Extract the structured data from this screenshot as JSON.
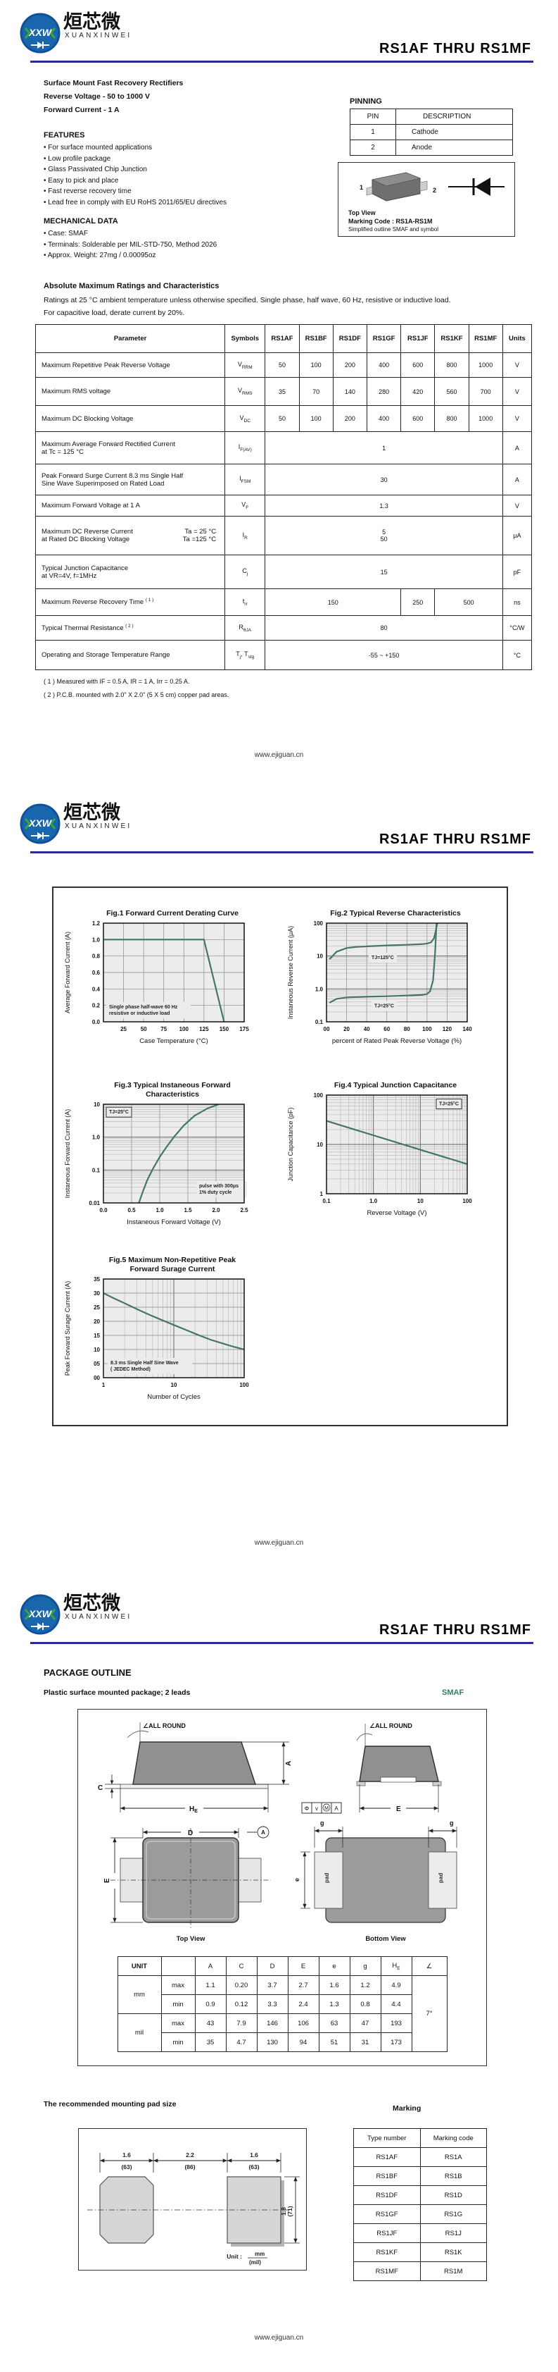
{
  "header": {
    "logo_xxw": "XXW",
    "logo_cn": "烜芯微",
    "logo_sub": "XUANXINWEI",
    "title": "RS1AF  THRU  RS1MF"
  },
  "footer": {
    "url": "www.ejiguan.cn"
  },
  "page1": {
    "intro": [
      "Surface Mount Fast Recovery Rectifiers",
      "Reverse Voltage - 50 to 1000 V",
      "Forward Current - 1 A"
    ],
    "features_title": "FEATURES",
    "features": [
      "• For surface mounted applications",
      "• Low profile package",
      "• Glass Passivated Chip Junction",
      "• Easy to pick and place",
      "• Fast reverse recovery time",
      "• Lead free in comply with EU RoHS 2011/65/EU directives"
    ],
    "mech_title": "MECHANICAL DATA",
    "mech": [
      "• Case: SMAF",
      "• Terminals: Solderable per MIL-STD-750, Method 2026",
      "• Approx. Weight:  27mg / 0.00095oz"
    ],
    "pinning": {
      "title": "PINNING",
      "h1": "PIN",
      "h2": "DESCRIPTION",
      "rows": [
        [
          "1",
          "Cathode"
        ],
        [
          "2",
          "Anode"
        ]
      ]
    },
    "outline_box": {
      "pin1": "1",
      "pin2": "2",
      "top_view": "Top View",
      "marking_code": "Marking Code :  RS1A-RS1M",
      "caption": "Simplified outline SMAF and symbol"
    },
    "ratings": {
      "title": "Absolute Maximum Ratings and Characteristics",
      "desc1": "Ratings at 25 °C ambient temperature unless otherwise specified. Single phase, half wave, 60 Hz, resistive or inductive load.",
      "desc2": "For capacitive load, derate current by 20%.",
      "col_headers": [
        "Parameter",
        "Symbols",
        "RS1AF",
        "RS1BF",
        "RS1DF",
        "RS1GF",
        "RS1JF",
        "RS1KF",
        "RS1MF",
        "Units"
      ],
      "rows": [
        {
          "param": "Maximum Repetitive Peak Reverse Voltage",
          "sym": "V",
          "sub": "RRM",
          "values": [
            "50",
            "100",
            "200",
            "400",
            "600",
            "800",
            "1000"
          ],
          "unit": "V"
        },
        {
          "param": "Maximum RMS voltage",
          "sym": "V",
          "sub": "RMS",
          "values": [
            "35",
            "70",
            "140",
            "280",
            "420",
            "560",
            "700"
          ],
          "unit": "V"
        },
        {
          "param": "Maximum DC Blocking Voltage",
          "sym": "V",
          "sub": "DC",
          "values": [
            "50",
            "100",
            "200",
            "400",
            "600",
            "800",
            "1000"
          ],
          "unit": "V"
        },
        {
          "param": "Maximum Average Forward Rectified Current",
          "param2": "at Tc = 125 °C",
          "sym": "I",
          "sub": "F(AV)",
          "value": "1",
          "unit": "A"
        },
        {
          "param": "Peak Forward Surge Current 8.3 ms Single Half",
          "param2": "Sine Wave Superimposed on Rated Load",
          "sym": "I",
          "sub": "FSM",
          "value": "30",
          "unit": "A"
        },
        {
          "param": "Maximum  Forward Voltage at 1 A",
          "sym": "V",
          "sub": "F",
          "value": "1.3",
          "unit": "V"
        },
        {
          "param": "Maximum DC Reverse Current",
          "param_r": "Ta = 25 °C",
          "param2": "at Rated DC Blocking Voltage",
          "param2_r": "Ta =125 °C",
          "sym": "I",
          "sub": "R",
          "value": "5",
          "value2": "50",
          "unit": "μA"
        },
        {
          "param": "Typical Junction Capacitance",
          "param2": "at VR=4V, f=1MHz",
          "sym": "C",
          "sub": "j",
          "value": "15",
          "unit": "pF"
        },
        {
          "param": "Maximum Reverse Recovery Time",
          "note_ref": "( 1 )",
          "sym": "t",
          "sub": "rr",
          "v150": "150",
          "v250": "250",
          "v500": "500",
          "unit": "ns"
        },
        {
          "param": "Typical Thermal Resistance",
          "note_ref": "( 2 )",
          "sym": "R",
          "sub": "θJA",
          "value": "80",
          "unit": "°C/W"
        },
        {
          "param": "Operating and Storage Temperature Range",
          "sym": "T",
          "sub": "j",
          "sym2": "T",
          "sub2": "stg",
          "value": "-55 ~ +150",
          "unit": "°C"
        }
      ]
    },
    "notes": [
      "( 1 ) Measured with IF = 0.5 A, IR = 1 A, Irr = 0.25 A.",
      "( 2 ) P.C.B. mounted with 2.0\" X 2.0\" (5 X 5 cm) copper pad areas."
    ]
  },
  "chart_data": [
    {
      "id": "fig1",
      "type": "line",
      "title": "Fig.1  Forward Current Derating Curve",
      "xlabel": "Case Temperature (°C)",
      "ylabel": "Average Forward Current  (A)",
      "xscale": "linear",
      "yscale": "linear",
      "xlim": [
        0,
        175
      ],
      "ylim": [
        0,
        1.2
      ],
      "xticks": [
        25,
        50,
        75,
        100,
        125,
        150,
        175
      ],
      "xticklabels": [
        "25",
        "50",
        "75",
        "100",
        "125",
        "150",
        "175"
      ],
      "yticks": [
        0,
        0.2,
        0.4,
        0.6,
        0.8,
        1.0,
        1.2
      ],
      "yticklabels": [
        "0.0",
        "0.2",
        "0.4",
        "0.6",
        "0.8",
        "1.0",
        "1.2"
      ],
      "series": [
        {
          "name": "derating",
          "x": [
            0,
            125,
            150
          ],
          "y": [
            1.0,
            1.0,
            0.0
          ]
        }
      ],
      "annotations": [
        {
          "lines": [
            "Single phase half-wave 60 Hz",
            "resistive or inductive load"
          ],
          "fx": 0.02,
          "fy": 0.8
        }
      ]
    },
    {
      "id": "fig2",
      "type": "line",
      "title": "Fig.2  Typical Reverse Characteristics",
      "xlabel": "percent of Rated  Peak Reverse Voltage (%)",
      "ylabel": "Instaneous Reverse Current  (μA)",
      "xscale": "linear",
      "yscale": "log",
      "xlim": [
        0,
        140
      ],
      "ylim": [
        0.1,
        100
      ],
      "xticks": [
        0,
        20,
        40,
        60,
        80,
        100,
        120,
        140
      ],
      "xticklabels": [
        "00",
        "20",
        "40",
        "60",
        "80",
        "100",
        "120",
        "140"
      ],
      "yticks": [
        0.1,
        1,
        10,
        100
      ],
      "yticklabels": [
        "0.1",
        "1.0",
        "10",
        "100"
      ],
      "series": [
        {
          "name": "TJ=125°C",
          "x": [
            3,
            10,
            20,
            30,
            45,
            60,
            80,
            95,
            100,
            104,
            107,
            109,
            110.5
          ],
          "y": [
            8,
            13.5,
            17.5,
            19,
            20,
            21,
            22,
            23,
            24,
            26,
            35,
            65,
            110
          ]
        },
        {
          "name": "TJ=25°C",
          "x": [
            3,
            10,
            20,
            40,
            60,
            80,
            95,
            100,
            103,
            106,
            108,
            109.5
          ],
          "y": [
            0.38,
            0.5,
            0.55,
            0.58,
            0.6,
            0.63,
            0.66,
            0.7,
            0.85,
            1.8,
            12,
            110
          ]
        }
      ],
      "annotations": [
        {
          "lines": [
            "TJ=125°C"
          ],
          "fx": 0.3,
          "fy": 0.3
        },
        {
          "lines": [
            "TJ=25°C"
          ],
          "fx": 0.32,
          "fy": 0.79
        }
      ]
    },
    {
      "id": "fig3",
      "type": "line",
      "title": "Fig.3  Typical Instaneous Forward",
      "title2": "Characteristics",
      "xlabel": "Instaneous Forward Voltage (V)",
      "ylabel": "Instaneous Forward Current (A)",
      "xscale": "linear",
      "yscale": "log",
      "xlim": [
        0,
        2.5
      ],
      "ylim": [
        0.01,
        10
      ],
      "xticks": [
        0,
        0.5,
        1.0,
        1.5,
        2.0,
        2.5
      ],
      "xticklabels": [
        "0.0",
        "0.5",
        "1.0",
        "1.5",
        "2.0",
        "2.5"
      ],
      "yticks": [
        0.01,
        0.1,
        1,
        10
      ],
      "yticklabels": [
        "0.01",
        "0.1",
        "1.0",
        "10"
      ],
      "series": [
        {
          "name": "VF",
          "x": [
            0.63,
            0.7,
            0.78,
            0.88,
            1.0,
            1.12,
            1.25,
            1.42,
            1.62,
            1.85,
            2.05
          ],
          "y": [
            0.01,
            0.022,
            0.05,
            0.11,
            0.25,
            0.5,
            1.0,
            2.2,
            4.5,
            7.5,
            10
          ]
        }
      ],
      "annotations": [
        {
          "lines": [
            "TJ=25°C"
          ],
          "fx": 0.02,
          "fy": 0.03,
          "boxed": true
        },
        {
          "lines": [
            "pulse with 300μs",
            "1% duty cycle"
          ],
          "fx": 0.66,
          "fy": 0.78
        }
      ]
    },
    {
      "id": "fig4",
      "type": "line",
      "title": "Fig.4  Typical Junction Capacitance",
      "xlabel": "Reverse  Voltage (V)",
      "ylabel": "Junction Capacitance (pF)",
      "xscale": "log",
      "yscale": "log",
      "xlim": [
        0.1,
        100
      ],
      "ylim": [
        1,
        100
      ],
      "xticks": [
        0.1,
        1,
        10,
        100
      ],
      "xticklabels": [
        "0.1",
        "1.0",
        "10",
        "100"
      ],
      "yticks": [
        1,
        10,
        100
      ],
      "yticklabels": [
        "1",
        "10",
        "100"
      ],
      "series": [
        {
          "name": "Cj",
          "x": [
            0.1,
            1,
            10,
            100
          ],
          "y": [
            30,
            15.3,
            7.8,
            4
          ]
        }
      ],
      "annotations": [
        {
          "lines": [
            "TJ=25°C"
          ],
          "fx": 0.78,
          "fy": 0.04,
          "boxed": true
        }
      ]
    },
    {
      "id": "fig5",
      "type": "line",
      "title": "Fig.5  Maximum Non-Repetitive Peak",
      "title2": "Forward Surage Current",
      "xlabel": "Number of Cycles",
      "ylabel": "Peak Forward Surage Current (A)",
      "xscale": "log",
      "yscale": "linear",
      "xlim": [
        1,
        100
      ],
      "ylim": [
        0,
        35
      ],
      "xticks": [
        1,
        10,
        100
      ],
      "xticklabels": [
        "1",
        "10",
        "100"
      ],
      "yticks": [
        0,
        5,
        10,
        15,
        20,
        25,
        30,
        35
      ],
      "yticklabels": [
        "00",
        "05",
        "10",
        "15",
        "20",
        "25",
        "30",
        "35"
      ],
      "series": [
        {
          "name": "IFSM",
          "x": [
            1,
            1.4,
            2,
            3,
            4.5,
            7,
            10,
            15,
            22,
            33,
            50,
            70,
            100
          ],
          "y": [
            30,
            28.2,
            26.4,
            24.3,
            22.3,
            20.3,
            18.7,
            16.9,
            15.2,
            13.5,
            12.1,
            11,
            10
          ]
        }
      ],
      "annotations": [
        {
          "lines": [
            "8.3 ms Single Half Sine Wave",
            "( JEDEC Method)"
          ],
          "fx": 0.03,
          "fy": 0.8
        }
      ]
    }
  ],
  "package": {
    "title": "PACKAGE  OUTLINE",
    "subtitle": "Plastic surface mounted package; 2 leads",
    "name": "SMAF",
    "labels": {
      "all_round": "∠ALL ROUND",
      "a": "A",
      "c": "C",
      "d": "D",
      "e_big": "E",
      "e_small": "e",
      "g": "g",
      "he_main": "H",
      "he_sub": "E",
      "top_view": "Top View",
      "bottom_view": "Bottom  View",
      "pad": "pad",
      "tol1": "Φ",
      "tol2": "v",
      "tol3": "M",
      "tol4": "A"
    },
    "dims": {
      "unit": "UNIT",
      "mm": "mm",
      "mil": "mil",
      "max": "max",
      "min": "min",
      "cols": [
        "A",
        "C",
        "D",
        "E",
        "e",
        "g"
      ],
      "he_main": "H",
      "he_sub": "E",
      "angle_sym": "∠",
      "mm_max": [
        "1.1",
        "0.20",
        "3.7",
        "2.7",
        "1.6",
        "1.2",
        "4.9"
      ],
      "mm_min": [
        "0.9",
        "0.12",
        "3.3",
        "2.4",
        "1.3",
        "0.8",
        "4.4"
      ],
      "mil_max": [
        "43",
        "7.9",
        "146",
        "106",
        "63",
        "47",
        "193"
      ],
      "mil_min": [
        "35",
        "4.7",
        "130",
        "94",
        "51",
        "31",
        "173"
      ],
      "angle": "7°"
    }
  },
  "mounting": {
    "title": "The recommended mounting pad size",
    "d1": "1.6",
    "d1m": "(63)",
    "d2": "2.2",
    "d2m": "(86)",
    "d3": "1.6",
    "d3m": "(63)",
    "dv": "1.8",
    "dvm": "(71)",
    "unit_label": "Unit :",
    "unit_num": "mm",
    "unit_den": "(mil)"
  },
  "marking": {
    "title": "Marking",
    "headers": [
      "Type number",
      "Marking code"
    ],
    "rows": [
      [
        "RS1AF",
        "RS1A"
      ],
      [
        "RS1BF",
        "RS1B"
      ],
      [
        "RS1DF",
        "RS1D"
      ],
      [
        "RS1GF",
        "RS1G"
      ],
      [
        "RS1JF",
        "RS1J"
      ],
      [
        "RS1KF",
        "RS1K"
      ],
      [
        "RS1MF",
        "RS1M"
      ]
    ]
  }
}
